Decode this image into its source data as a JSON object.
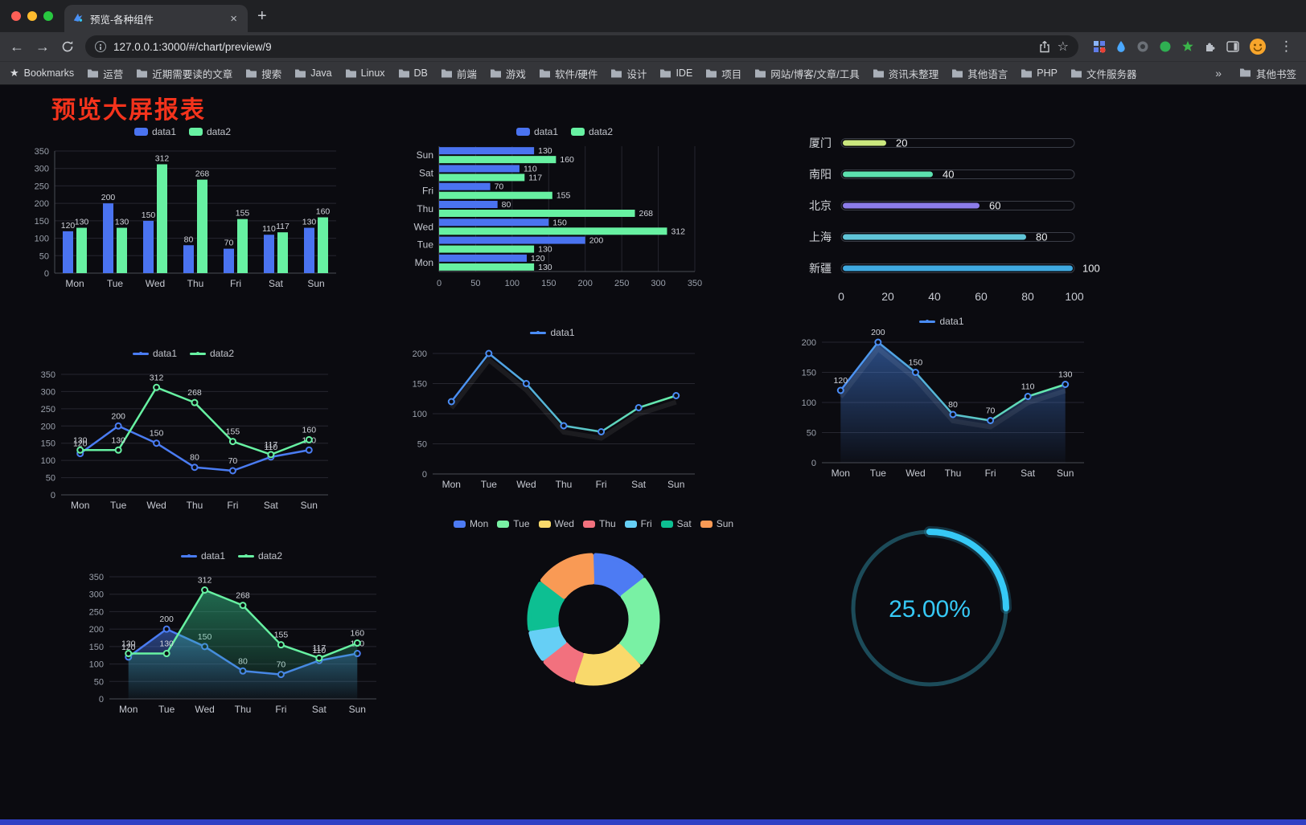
{
  "browser": {
    "tab_title": "预览-各种组件",
    "url": "127.0.0.1:3000/#/chart/preview/9",
    "bookmarks_label": "Bookmarks",
    "bookmarks": [
      "运营",
      "近期需要读的文章",
      "搜索",
      "Java",
      "Linux",
      "DB",
      "前端",
      "游戏",
      "软件/硬件",
      "设计",
      "IDE",
      "项目",
      "网站/博客/文章/工具",
      "资讯未整理",
      "其他语言",
      "PHP",
      "文件服务器"
    ],
    "other_bookmarks": "其他书签"
  },
  "icons": {
    "back": "←",
    "forward": "→",
    "close": "×",
    "new_tab": "+",
    "overflow": "»",
    "menu": "⋮",
    "bookmark_star": "☆",
    "bookmarks_star": "★"
  },
  "page": {
    "title": "预览大屏报表"
  },
  "chart_data": [
    {
      "type": "bar",
      "name": "grouped-vertical-bar",
      "categories": [
        "Mon",
        "Tue",
        "Wed",
        "Thu",
        "Fri",
        "Sat",
        "Sun"
      ],
      "series": [
        {
          "name": "data1",
          "color": "#4A73F0",
          "values": [
            120,
            200,
            150,
            80,
            70,
            110,
            130
          ]
        },
        {
          "name": "data2",
          "color": "#67F1A2",
          "values": [
            130,
            130,
            312,
            268,
            155,
            117,
            160
          ]
        }
      ],
      "ylim": [
        0,
        350
      ],
      "ytick": 50,
      "labels": true
    },
    {
      "type": "hbar",
      "name": "grouped-horizontal-bar",
      "categories": [
        "Mon",
        "Tue",
        "Wed",
        "Thu",
        "Fri",
        "Sat",
        "Sun"
      ],
      "series": [
        {
          "name": "data1",
          "color": "#4A73F0",
          "values": [
            120,
            200,
            150,
            80,
            70,
            110,
            130
          ]
        },
        {
          "name": "data2",
          "color": "#67F1A2",
          "values": [
            130,
            130,
            312,
            268,
            155,
            117,
            160
          ]
        }
      ],
      "xlim": [
        0,
        350
      ],
      "xtick": 50,
      "labels": true
    },
    {
      "type": "capsule",
      "name": "capsule-progress-bars",
      "categories": [
        "厦门",
        "南阳",
        "北京",
        "上海",
        "新疆"
      ],
      "values": [
        20,
        40,
        60,
        80,
        100
      ],
      "colors": [
        "#CBE87E",
        "#5CE0AE",
        "#8C7CEA",
        "#60C5D8",
        "#3FA9E0"
      ],
      "xticks": [
        0,
        20,
        40,
        60,
        80,
        100
      ]
    },
    {
      "type": "line",
      "name": "two-series-line",
      "categories": [
        "Mon",
        "Tue",
        "Wed",
        "Thu",
        "Fri",
        "Sat",
        "Sun"
      ],
      "series": [
        {
          "name": "data1",
          "color": "#4A7CF2",
          "values": [
            120,
            200,
            150,
            80,
            70,
            110,
            130
          ]
        },
        {
          "name": "data2",
          "color": "#67F1A2",
          "values": [
            130,
            130,
            312,
            268,
            155,
            117,
            160
          ]
        }
      ],
      "ylim": [
        0,
        350
      ],
      "ytick": 50,
      "labels": true
    },
    {
      "type": "line",
      "name": "single-line-gradient",
      "categories": [
        "Mon",
        "Tue",
        "Wed",
        "Thu",
        "Fri",
        "Sat",
        "Sun"
      ],
      "series": [
        {
          "name": "data1",
          "color": "#4A8CF5",
          "gradient": [
            "#4A8CF5",
            "#66EFA8"
          ],
          "shadow": true,
          "values": [
            120,
            200,
            150,
            80,
            70,
            110,
            130
          ]
        }
      ],
      "ylim": [
        0,
        200
      ],
      "ytick": 50,
      "labels": false
    },
    {
      "type": "line",
      "name": "single-area-line",
      "categories": [
        "Mon",
        "Tue",
        "Wed",
        "Thu",
        "Fri",
        "Sat",
        "Sun"
      ],
      "series": [
        {
          "name": "data1",
          "color": "#4A8CF5",
          "gradient": [
            "#4A8CF5",
            "#66EFA8"
          ],
          "area": "#4A8CF5",
          "shadow": true,
          "values": [
            120,
            200,
            150,
            80,
            70,
            110,
            130
          ]
        }
      ],
      "ylim": [
        0,
        200
      ],
      "ytick": 50,
      "labels": true
    },
    {
      "type": "line",
      "name": "two-series-area-line",
      "categories": [
        "Mon",
        "Tue",
        "Wed",
        "Thu",
        "Fri",
        "Sat",
        "Sun"
      ],
      "series": [
        {
          "name": "data1",
          "color": "#4A7CF2",
          "area": "#4A7CF2",
          "values": [
            120,
            200,
            150,
            80,
            70,
            110,
            130
          ]
        },
        {
          "name": "data2",
          "color": "#67F1A2",
          "area": "#35C98E",
          "values": [
            130,
            130,
            312,
            268,
            155,
            117,
            160
          ]
        }
      ],
      "ylim": [
        0,
        350
      ],
      "ytick": 50,
      "labels": true
    },
    {
      "type": "pie",
      "name": "donut",
      "labels": [
        "Mon",
        "Tue",
        "Wed",
        "Thu",
        "Fri",
        "Sat",
        "Sun"
      ],
      "values": [
        120,
        200,
        150,
        80,
        70,
        110,
        130
      ],
      "colors": [
        "#4D7BF3",
        "#79F1A4",
        "#F9D96B",
        "#F2717E",
        "#66CFF5",
        "#0DBF92",
        "#F99A55"
      ]
    },
    {
      "type": "progress",
      "name": "progress-ring",
      "value": "25.00%",
      "percent": 25,
      "color": "#36C9F6",
      "track_color": "#1C4B59"
    }
  ]
}
